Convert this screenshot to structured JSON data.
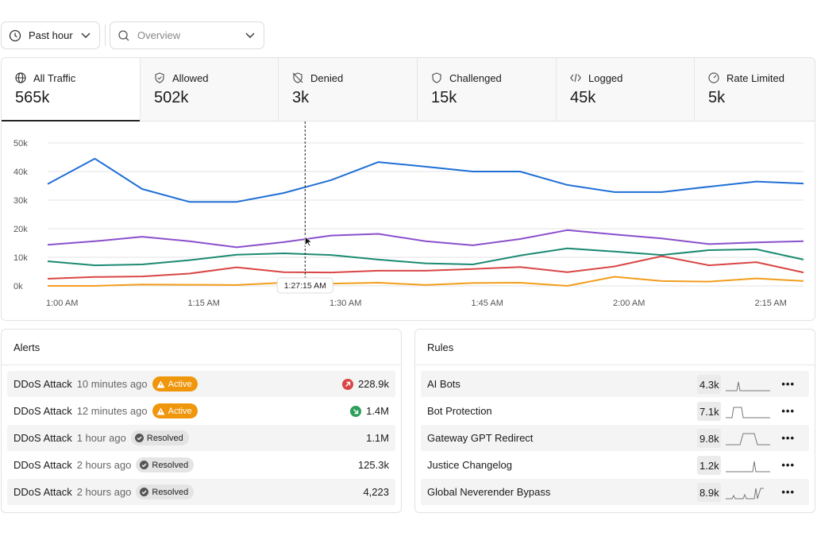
{
  "filters": {
    "time": "Past hour",
    "view": "Overview"
  },
  "tabs": [
    {
      "label": "All Traffic",
      "value": "565k"
    },
    {
      "label": "Allowed",
      "value": "502k"
    },
    {
      "label": "Denied",
      "value": "3k"
    },
    {
      "label": "Challenged",
      "value": "15k"
    },
    {
      "label": "Logged",
      "value": "45k"
    },
    {
      "label": "Rate Limited",
      "value": "5k"
    }
  ],
  "chart_data": {
    "type": "line",
    "x": [
      "1:00 AM",
      "1:05 AM",
      "1:10 AM",
      "1:15 AM",
      "1:20 AM",
      "1:25 AM",
      "1:30 AM",
      "1:35 AM",
      "1:40 AM",
      "1:45 AM",
      "1:50 AM",
      "1:55 AM",
      "2:00 AM",
      "2:05 AM",
      "2:10 AM",
      "2:15 AM",
      "2:20 AM"
    ],
    "xlim": [
      "1:00 AM",
      "2:20 AM"
    ],
    "xticks": [
      "1:00 AM",
      "1:15 AM",
      "1:30 AM",
      "1:45 AM",
      "2:00 AM",
      "2:15 AM"
    ],
    "ylim": [
      0,
      50000
    ],
    "yticks": [
      {
        "value": 0,
        "label": "0k"
      },
      {
        "value": 10000,
        "label": "10k"
      },
      {
        "value": 20000,
        "label": "20k"
      },
      {
        "value": 30000,
        "label": "30k"
      },
      {
        "value": 40000,
        "label": "40k"
      },
      {
        "value": 50000,
        "label": "50k"
      }
    ],
    "grid": true,
    "series": [
      {
        "color": "#1f6fd6",
        "values": [
          35600,
          44500,
          33900,
          29400,
          29400,
          32500,
          37000,
          43300,
          41700,
          40000,
          40000,
          35300,
          32800,
          32800,
          34700,
          36500,
          35800
        ]
      },
      {
        "color": "#8a4fcc",
        "values": [
          14400,
          15600,
          17200,
          15600,
          13500,
          15300,
          17600,
          18200,
          15600,
          14200,
          16400,
          19500,
          18000,
          16600,
          14600,
          15200,
          15600
        ]
      },
      {
        "color": "#1b8a72",
        "values": [
          8600,
          7200,
          7500,
          9000,
          10900,
          11400,
          10800,
          9200,
          7900,
          7500,
          10600,
          13100,
          12000,
          10800,
          12500,
          12800,
          9200
        ]
      },
      {
        "color": "#d94545",
        "values": [
          2500,
          3100,
          3300,
          4300,
          6500,
          4800,
          4700,
          5300,
          5300,
          5900,
          6600,
          4800,
          6800,
          10400,
          7200,
          8300,
          4700
        ]
      },
      {
        "color": "#f29d1c",
        "values": [
          0,
          0,
          500,
          400,
          300,
          1100,
          800,
          1100,
          300,
          1000,
          1100,
          0,
          3200,
          1700,
          1500,
          2600,
          1700
        ]
      }
    ],
    "tooltip": "1:27:15 AM"
  },
  "alerts": {
    "title": "Alerts",
    "rows": [
      {
        "name": "DDoS Attack",
        "time": "10 minutes ago",
        "status": "Active",
        "value": "228.9k"
      },
      {
        "name": "DDoS Attack",
        "time": "12 minutes ago",
        "status": "Active",
        "value": "1.4M"
      },
      {
        "name": "DDoS Attack",
        "time": "1 hour ago",
        "status": "Resolved",
        "value": "1.1M"
      },
      {
        "name": "DDoS Attack",
        "time": "2 hours ago",
        "status": "Resolved",
        "value": "125.3k"
      },
      {
        "name": "DDoS Attack",
        "time": "2 hours ago",
        "status": "Resolved",
        "value": "4,223"
      }
    ]
  },
  "rules": {
    "title": "Rules",
    "rows": [
      {
        "name": "AI Bots",
        "value": "4.3k"
      },
      {
        "name": "Bot Protection",
        "value": "7.1k"
      },
      {
        "name": "Gateway GPT Redirect",
        "value": "9.8k"
      },
      {
        "name": "Justice Changelog",
        "value": "1.2k"
      },
      {
        "name": "Global Neverender Bypass",
        "value": "8.9k"
      }
    ]
  }
}
